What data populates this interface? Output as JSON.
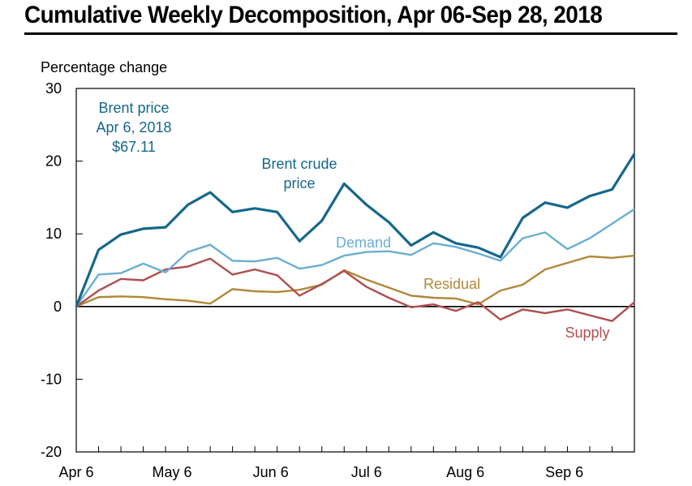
{
  "title": "Cumulative Weekly Decomposition, Apr 06-Sep 28, 2018",
  "chart_data": {
    "type": "line",
    "title": "Cumulative Weekly Decomposition, Apr 06-Sep 28, 2018",
    "ylabel": "Percentage change",
    "xlabel": "",
    "ylim": [
      -20,
      30
    ],
    "yticks": [
      30,
      20,
      10,
      0,
      -10,
      -20
    ],
    "x": [
      "Apr 6",
      "Apr 13",
      "Apr 20",
      "Apr 27",
      "May 4",
      "May 11",
      "May 18",
      "May 25",
      "Jun 1",
      "Jun 8",
      "Jun 15",
      "Jun 22",
      "Jun 29",
      "Jul 6",
      "Jul 13",
      "Jul 20",
      "Jul 27",
      "Aug 3",
      "Aug 10",
      "Aug 17",
      "Aug 24",
      "Aug 31",
      "Sep 7",
      "Sep 14",
      "Sep 21",
      "Sep 28"
    ],
    "xtick_labels": [
      "Apr 6",
      "May 6",
      "Jun 6",
      "Jul 6",
      "Aug 6",
      "Sep 6"
    ],
    "xtick_positions": [
      0,
      4.29,
      8.71,
      13,
      17.43,
      21.86
    ],
    "grid": false,
    "series": [
      {
        "name": "Brent crude price",
        "label_lines": [
          "Brent crude",
          "price"
        ],
        "color": "#15678b",
        "values": [
          0,
          7.8,
          9.9,
          10.7,
          10.9,
          14.0,
          15.7,
          13.0,
          13.5,
          13.0,
          9.0,
          11.8,
          16.9,
          14.0,
          11.6,
          8.4,
          10.2,
          8.7,
          8.1,
          6.8,
          12.2,
          14.3,
          13.6,
          15.2,
          16.1,
          21.0
        ]
      },
      {
        "name": "Demand",
        "label_lines": [
          "Demand"
        ],
        "color": "#6aaed3",
        "values": [
          0,
          4.4,
          4.6,
          5.9,
          4.7,
          7.5,
          8.5,
          6.3,
          6.2,
          6.7,
          5.2,
          5.7,
          7.0,
          7.5,
          7.6,
          7.1,
          8.7,
          8.2,
          7.3,
          6.3,
          9.4,
          10.2,
          7.9,
          9.4,
          11.4,
          13.4
        ]
      },
      {
        "name": "Residual",
        "label_lines": [
          "Residual"
        ],
        "color": "#b08838",
        "values": [
          0,
          1.3,
          1.4,
          1.3,
          1.0,
          0.8,
          0.4,
          2.4,
          2.1,
          2.0,
          2.3,
          3.0,
          5.0,
          3.7,
          2.6,
          1.5,
          1.2,
          1.1,
          0.3,
          2.2,
          3.0,
          5.1,
          6.0,
          6.9,
          6.7,
          7.0
        ]
      },
      {
        "name": "Supply",
        "label_lines": [
          "Supply"
        ],
        "color": "#b04e4e",
        "values": [
          0,
          2.2,
          3.8,
          3.6,
          5.1,
          5.5,
          6.6,
          4.4,
          5.1,
          4.3,
          1.5,
          3.1,
          4.9,
          2.7,
          1.2,
          -0.1,
          0.3,
          -0.6,
          0.6,
          -1.8,
          -0.4,
          -0.9,
          -0.4,
          -1.2,
          -2.0,
          0.6
        ]
      }
    ],
    "annotations": [
      {
        "lines": [
          "Brent price",
          "Apr 6, 2018",
          "$67.11"
        ],
        "color": "#15678b"
      }
    ]
  }
}
